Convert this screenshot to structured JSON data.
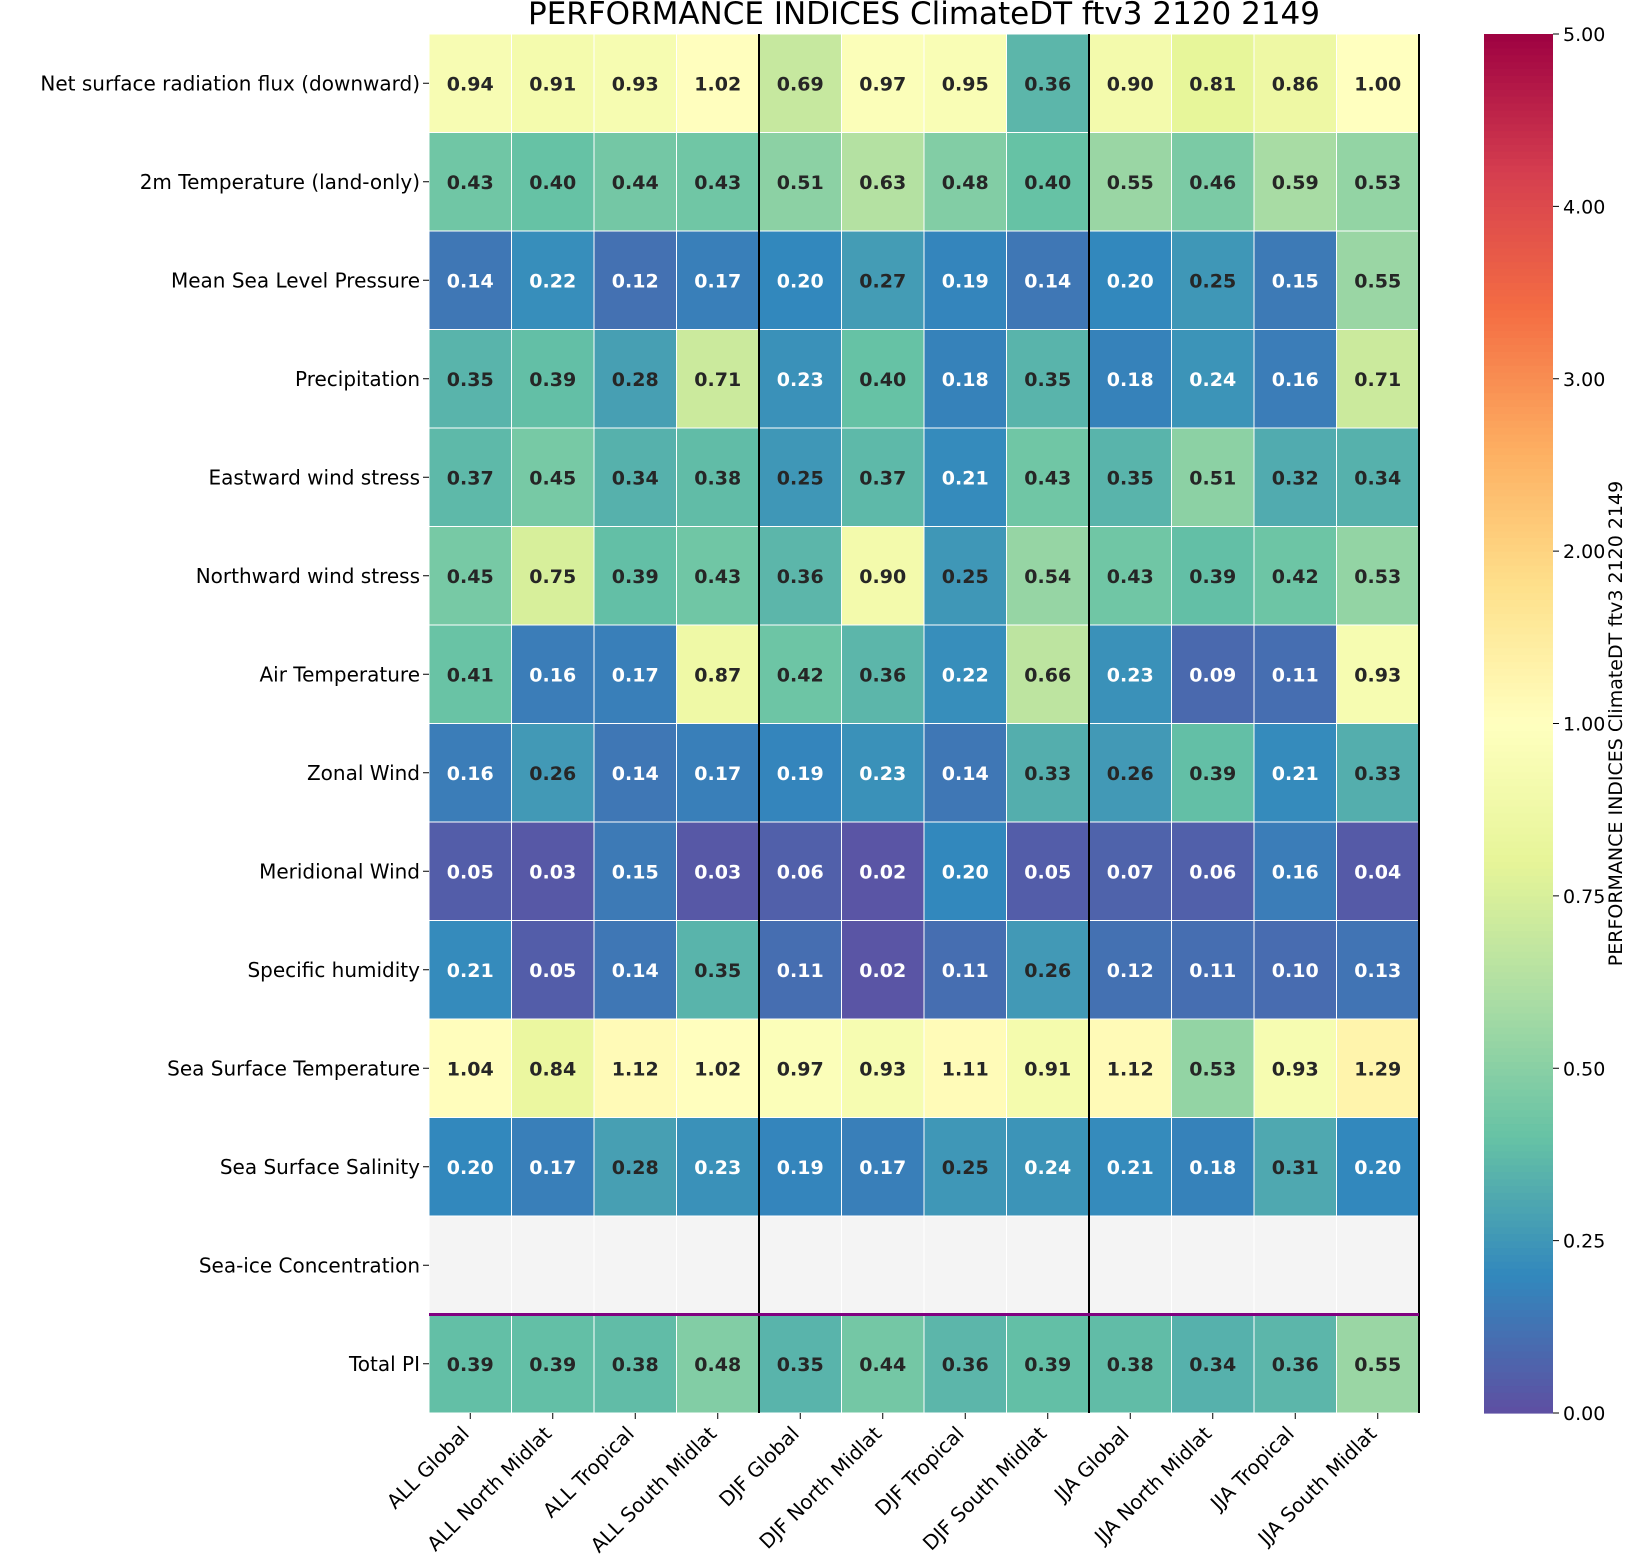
{
  "chart_data": {
    "type": "heatmap",
    "title": "PERFORMANCE INDICES ClimateDT ftv3 2120 2149",
    "colorbar_label": "PERFORMANCE INDICES ClimateDT ftv3 2120 2149",
    "colormap": "Spectral_r",
    "vmin": 0,
    "vcenter": 1,
    "vmax": 5,
    "colorbar_ticks": [
      "0.00",
      "0.25",
      "0.50",
      "0.75",
      "1.00",
      "2.00",
      "3.00",
      "4.00",
      "5.00"
    ],
    "colorbar_tick_values": [
      0,
      0.25,
      0.5,
      0.75,
      1,
      2,
      3,
      4,
      5
    ],
    "columns": [
      "ALL Global",
      "ALL North Midlat",
      "ALL Tropical",
      "ALL South Midlat",
      "DJF Global",
      "DJF North Midlat",
      "DJF Tropical",
      "DJF South Midlat",
      "JJA Global",
      "JJA North Midlat",
      "JJA Tropical",
      "JJA South Midlat"
    ],
    "rows": [
      "Net surface radiation flux (downward)",
      "2m Temperature (land-only)",
      "Mean Sea Level Pressure",
      "Precipitation",
      "Eastward wind stress",
      "Northward wind stress",
      "Air Temperature",
      "Zonal Wind",
      "Meridional Wind",
      "Specific humidity",
      "Sea Surface Temperature",
      "Sea Surface Salinity",
      "Sea-ice Concentration",
      "Total PI"
    ],
    "values": [
      [
        0.94,
        0.91,
        0.93,
        1.02,
        0.69,
        0.97,
        0.95,
        0.36,
        0.9,
        0.81,
        0.86,
        1.0
      ],
      [
        0.43,
        0.4,
        0.44,
        0.43,
        0.51,
        0.63,
        0.48,
        0.4,
        0.55,
        0.46,
        0.59,
        0.53
      ],
      [
        0.14,
        0.22,
        0.12,
        0.17,
        0.2,
        0.27,
        0.19,
        0.14,
        0.2,
        0.25,
        0.15,
        0.55
      ],
      [
        0.35,
        0.39,
        0.28,
        0.71,
        0.23,
        0.4,
        0.18,
        0.35,
        0.18,
        0.24,
        0.16,
        0.71
      ],
      [
        0.37,
        0.45,
        0.34,
        0.38,
        0.25,
        0.37,
        0.21,
        0.43,
        0.35,
        0.51,
        0.32,
        0.34
      ],
      [
        0.45,
        0.75,
        0.39,
        0.43,
        0.36,
        0.9,
        0.25,
        0.54,
        0.43,
        0.39,
        0.42,
        0.53
      ],
      [
        0.41,
        0.16,
        0.17,
        0.87,
        0.42,
        0.36,
        0.22,
        0.66,
        0.23,
        0.09,
        0.11,
        0.93
      ],
      [
        0.16,
        0.26,
        0.14,
        0.17,
        0.19,
        0.23,
        0.14,
        0.33,
        0.26,
        0.39,
        0.21,
        0.33
      ],
      [
        0.05,
        0.03,
        0.15,
        0.03,
        0.06,
        0.02,
        0.2,
        0.05,
        0.07,
        0.06,
        0.16,
        0.04
      ],
      [
        0.21,
        0.05,
        0.14,
        0.35,
        0.11,
        0.02,
        0.11,
        0.26,
        0.12,
        0.11,
        0.1,
        0.13
      ],
      [
        1.04,
        0.84,
        1.12,
        1.02,
        0.97,
        0.93,
        1.11,
        0.91,
        1.12,
        0.53,
        0.93,
        1.29
      ],
      [
        0.2,
        0.17,
        0.28,
        0.23,
        0.19,
        0.17,
        0.25,
        0.24,
        0.21,
        0.18,
        0.31,
        0.2
      ],
      [
        null,
        null,
        null,
        null,
        null,
        null,
        null,
        null,
        null,
        null,
        null,
        null
      ],
      [
        0.39,
        0.39,
        0.38,
        0.48,
        0.35,
        0.44,
        0.36,
        0.39,
        0.38,
        0.34,
        0.36,
        0.55
      ]
    ],
    "missing_color": "#f4f4f4",
    "group_separator_color": "#000000",
    "total_separator_color": "#800080"
  }
}
